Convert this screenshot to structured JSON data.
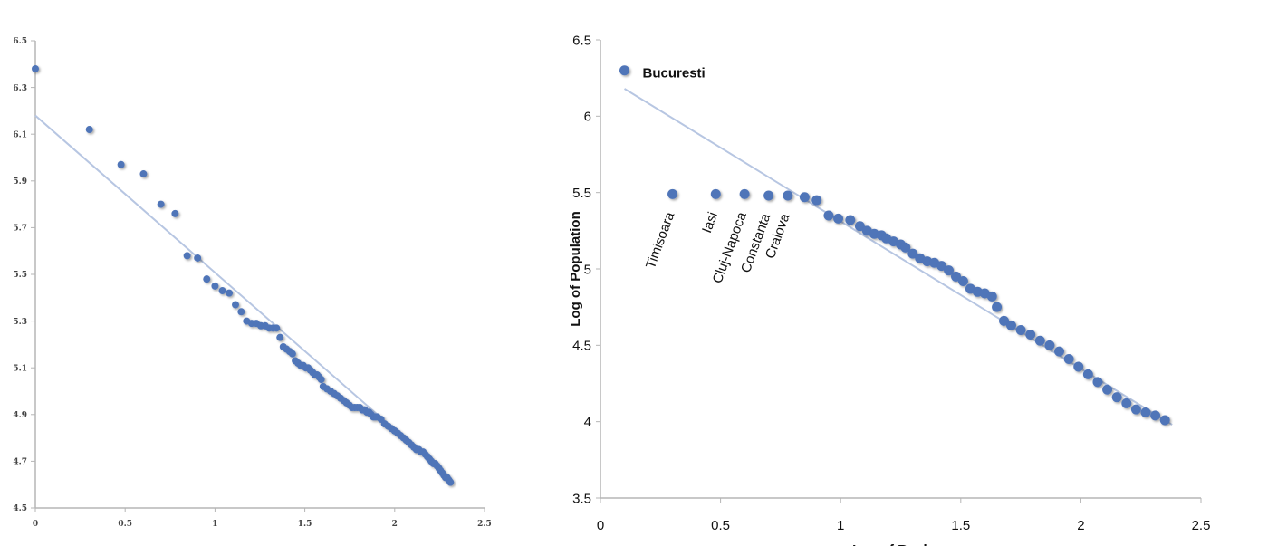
{
  "chart_data": [
    {
      "type": "scatter",
      "title": "",
      "xlabel": "",
      "ylabel": "",
      "xlim": [
        0,
        2.5
      ],
      "ylim": [
        4.5,
        6.5
      ],
      "xticks": [
        "0",
        "0.5",
        "1",
        "1.5",
        "2",
        "2.5"
      ],
      "yticks": [
        "4.5",
        "4.7",
        "4.9",
        "5.1",
        "5.3",
        "5.5",
        "5.7",
        "5.9",
        "6.1",
        "6.3",
        "6.5"
      ],
      "grid": false,
      "marker_color": "#4f74b8",
      "trendline": {
        "color": "#b7c6e2",
        "from": [
          0,
          6.18
        ],
        "to": [
          2.32,
          4.62
        ]
      },
      "points": [
        [
          0,
          6.38
        ],
        [
          0.301,
          6.12
        ],
        [
          0.477,
          5.97
        ],
        [
          0.602,
          5.93
        ],
        [
          0.699,
          5.8
        ],
        [
          0.778,
          5.76
        ],
        [
          0.845,
          5.58
        ],
        [
          0.903,
          5.57
        ],
        [
          0.954,
          5.48
        ],
        [
          1.0,
          5.45
        ],
        [
          1.041,
          5.43
        ],
        [
          1.079,
          5.42
        ],
        [
          1.114,
          5.37
        ],
        [
          1.146,
          5.34
        ],
        [
          1.176,
          5.3
        ],
        [
          1.204,
          5.29
        ],
        [
          1.23,
          5.29
        ],
        [
          1.255,
          5.28
        ],
        [
          1.279,
          5.28
        ],
        [
          1.301,
          5.27
        ],
        [
          1.322,
          5.27
        ],
        [
          1.342,
          5.27
        ],
        [
          1.362,
          5.23
        ],
        [
          1.38,
          5.19
        ],
        [
          1.398,
          5.18
        ],
        [
          1.415,
          5.17
        ],
        [
          1.431,
          5.16
        ],
        [
          1.447,
          5.13
        ],
        [
          1.462,
          5.12
        ],
        [
          1.477,
          5.11
        ],
        [
          1.491,
          5.11
        ],
        [
          1.505,
          5.1
        ],
        [
          1.518,
          5.1
        ],
        [
          1.531,
          5.09
        ],
        [
          1.544,
          5.08
        ],
        [
          1.556,
          5.07
        ],
        [
          1.568,
          5.07
        ],
        [
          1.58,
          5.06
        ],
        [
          1.591,
          5.05
        ],
        [
          1.602,
          5.02
        ],
        [
          1.623,
          5.01
        ],
        [
          1.643,
          5.0
        ],
        [
          1.663,
          4.99
        ],
        [
          1.681,
          4.98
        ],
        [
          1.699,
          4.97
        ],
        [
          1.716,
          4.96
        ],
        [
          1.732,
          4.95
        ],
        [
          1.748,
          4.94
        ],
        [
          1.763,
          4.93
        ],
        [
          1.778,
          4.93
        ],
        [
          1.792,
          4.93
        ],
        [
          1.806,
          4.93
        ],
        [
          1.82,
          4.92
        ],
        [
          1.833,
          4.92
        ],
        [
          1.845,
          4.91
        ],
        [
          1.857,
          4.91
        ],
        [
          1.869,
          4.9
        ],
        [
          1.881,
          4.89
        ],
        [
          1.892,
          4.89
        ],
        [
          1.903,
          4.89
        ],
        [
          1.924,
          4.88
        ],
        [
          1.944,
          4.86
        ],
        [
          1.964,
          4.85
        ],
        [
          1.982,
          4.84
        ],
        [
          2.0,
          4.83
        ],
        [
          2.017,
          4.82
        ],
        [
          2.033,
          4.81
        ],
        [
          2.049,
          4.8
        ],
        [
          2.064,
          4.79
        ],
        [
          2.079,
          4.78
        ],
        [
          2.093,
          4.77
        ],
        [
          2.107,
          4.76
        ],
        [
          2.121,
          4.75
        ],
        [
          2.134,
          4.75
        ],
        [
          2.146,
          4.74
        ],
        [
          2.158,
          4.74
        ],
        [
          2.17,
          4.73
        ],
        [
          2.182,
          4.72
        ],
        [
          2.193,
          4.71
        ],
        [
          2.204,
          4.7
        ],
        [
          2.215,
          4.69
        ],
        [
          2.225,
          4.69
        ],
        [
          2.236,
          4.68
        ],
        [
          2.246,
          4.67
        ],
        [
          2.255,
          4.66
        ],
        [
          2.265,
          4.65
        ],
        [
          2.274,
          4.64
        ],
        [
          2.283,
          4.63
        ],
        [
          2.292,
          4.63
        ],
        [
          2.301,
          4.62
        ],
        [
          2.31,
          4.61
        ]
      ]
    },
    {
      "type": "scatter",
      "title": "",
      "xlabel": "Log of Rank",
      "ylabel": "Log of Population",
      "xlim": [
        0,
        2.5
      ],
      "ylim": [
        3.5,
        6.5
      ],
      "xticks": [
        "0",
        "0.5",
        "1",
        "1.5",
        "2",
        "2.5"
      ],
      "yticks": [
        "3.5",
        "4",
        "4.5",
        "5",
        "5.5",
        "6",
        "6.5"
      ],
      "grid": false,
      "marker_color": "#4f74b8",
      "trendline": {
        "color": "#b7c6e2",
        "from": [
          0.1,
          6.18
        ],
        "to": [
          2.38,
          3.98
        ]
      },
      "labeled_points": [
        {
          "label": "Bucuresti",
          "x": 0.1,
          "y": 6.3
        },
        {
          "label": "Timisoara",
          "x": 0.3,
          "y": 5.49
        },
        {
          "label": "Iasi",
          "x": 0.48,
          "y": 5.49
        },
        {
          "label": "Cluj-Napoca",
          "x": 0.6,
          "y": 5.49
        },
        {
          "label": "Constanta",
          "x": 0.7,
          "y": 5.48
        },
        {
          "label": "Craiova",
          "x": 0.78,
          "y": 5.48
        }
      ],
      "points": [
        [
          0.85,
          5.47
        ],
        [
          0.9,
          5.45
        ],
        [
          0.95,
          5.35
        ],
        [
          0.99,
          5.33
        ],
        [
          1.04,
          5.32
        ],
        [
          1.08,
          5.28
        ],
        [
          1.11,
          5.25
        ],
        [
          1.14,
          5.23
        ],
        [
          1.17,
          5.22
        ],
        [
          1.19,
          5.2
        ],
        [
          1.22,
          5.18
        ],
        [
          1.25,
          5.16
        ],
        [
          1.27,
          5.14
        ],
        [
          1.3,
          5.1
        ],
        [
          1.33,
          5.07
        ],
        [
          1.36,
          5.05
        ],
        [
          1.39,
          5.04
        ],
        [
          1.42,
          5.02
        ],
        [
          1.45,
          4.99
        ],
        [
          1.48,
          4.95
        ],
        [
          1.51,
          4.92
        ],
        [
          1.54,
          4.87
        ],
        [
          1.57,
          4.85
        ],
        [
          1.6,
          4.84
        ],
        [
          1.63,
          4.82
        ],
        [
          1.65,
          4.75
        ],
        [
          1.68,
          4.66
        ],
        [
          1.71,
          4.63
        ],
        [
          1.75,
          4.6
        ],
        [
          1.79,
          4.57
        ],
        [
          1.83,
          4.53
        ],
        [
          1.87,
          4.5
        ],
        [
          1.91,
          4.46
        ],
        [
          1.95,
          4.41
        ],
        [
          1.99,
          4.36
        ],
        [
          2.03,
          4.31
        ],
        [
          2.07,
          4.26
        ],
        [
          2.11,
          4.21
        ],
        [
          2.15,
          4.16
        ],
        [
          2.19,
          4.12
        ],
        [
          2.23,
          4.08
        ],
        [
          2.27,
          4.06
        ],
        [
          2.31,
          4.04
        ],
        [
          2.35,
          4.01
        ]
      ]
    }
  ]
}
